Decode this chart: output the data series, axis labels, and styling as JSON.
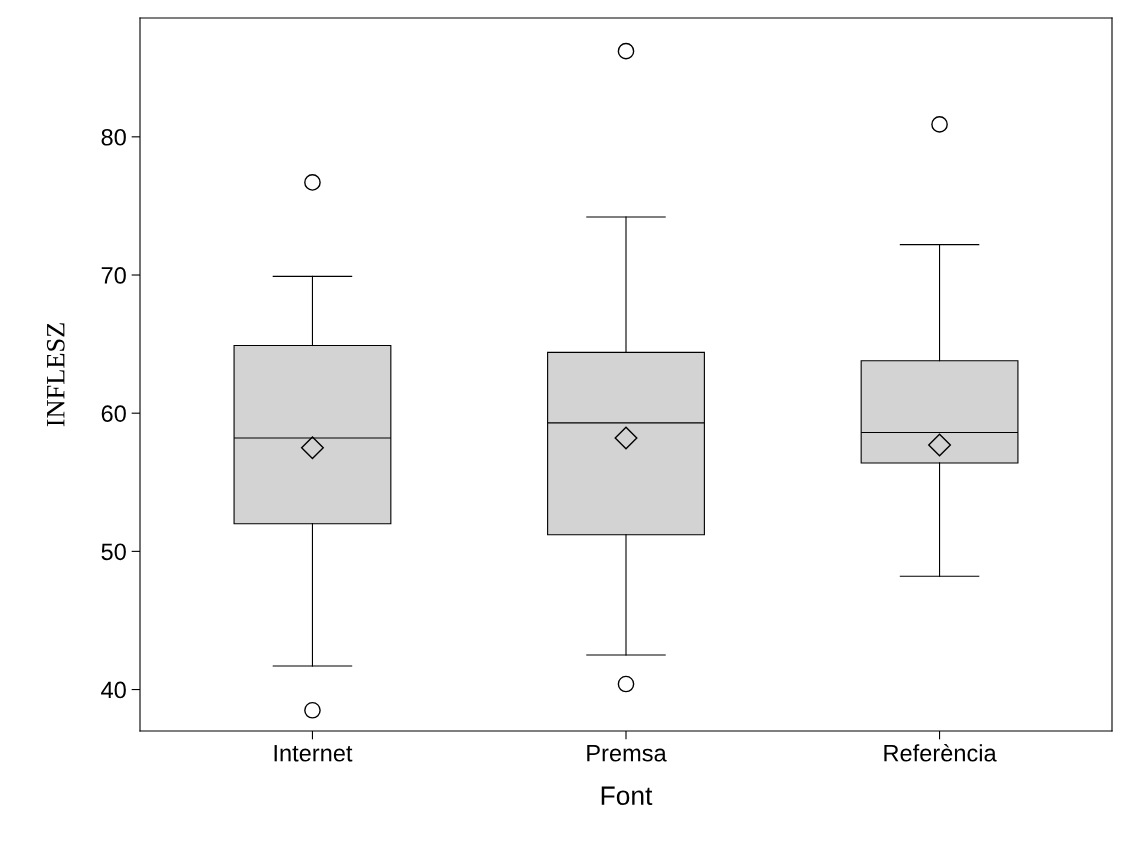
{
  "chart_data": {
    "type": "box",
    "xlabel": "Font",
    "ylabel": "INFLESZ",
    "categories": [
      "Internet",
      "Premsa",
      "Referència"
    ],
    "boxes": [
      {
        "low": 41.7,
        "q1": 52.0,
        "median": 58.2,
        "q3": 64.9,
        "high": 69.9,
        "mean": 57.5,
        "outliers": [
          76.7,
          38.5
        ]
      },
      {
        "low": 42.5,
        "q1": 51.2,
        "median": 59.3,
        "q3": 64.4,
        "high": 74.2,
        "mean": 58.2,
        "outliers": [
          86.2,
          40.4
        ]
      },
      {
        "low": 48.2,
        "q1": 56.4,
        "median": 58.6,
        "q3": 63.8,
        "high": 72.2,
        "mean": 57.7,
        "outliers": [
          80.9
        ]
      }
    ],
    "color": "#d3d3d3",
    "ylim": [
      37.0,
      88.6
    ],
    "yticks": [
      40,
      50,
      60,
      70,
      80
    ],
    "grid": false,
    "legend": false
  }
}
